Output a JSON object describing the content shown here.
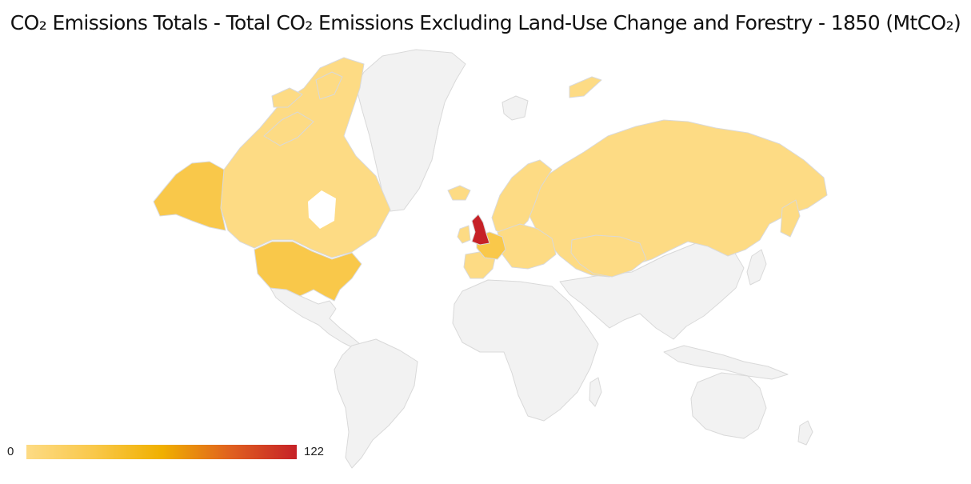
{
  "title": "CO₂ Emissions Totals - Total CO₂ Emissions Excluding Land-Use Change and Forestry - 1850 (MtCO₂)",
  "legend": {
    "min": "0",
    "max": "122",
    "colors": [
      "#fddb84",
      "#f9c84a",
      "#f0b000",
      "#e0621f",
      "#c62127"
    ]
  },
  "colors": {
    "no_data": "#f2f2f2",
    "border": "#d9d9d9",
    "low": "#fddb84",
    "mid_low": "#f9c84a",
    "high": "#c62127"
  },
  "regions": [
    {
      "name": "United Kingdom",
      "level": "high"
    },
    {
      "name": "United States",
      "level": "mid_low"
    },
    {
      "name": "Alaska",
      "level": "mid_low"
    },
    {
      "name": "Canada",
      "level": "low"
    },
    {
      "name": "Russia",
      "level": "low"
    },
    {
      "name": "France",
      "level": "mid_low"
    },
    {
      "name": "Spain",
      "level": "low"
    },
    {
      "name": "Scandinavia",
      "level": "low"
    },
    {
      "name": "Central Europe",
      "level": "low"
    },
    {
      "name": "Ireland",
      "level": "low"
    },
    {
      "name": "Central Asia",
      "level": "low"
    },
    {
      "name": "Greenland",
      "level": "no_data"
    },
    {
      "name": "South America",
      "level": "no_data"
    },
    {
      "name": "Africa",
      "level": "no_data"
    },
    {
      "name": "Asia",
      "level": "no_data"
    },
    {
      "name": "Australia",
      "level": "no_data"
    }
  ]
}
